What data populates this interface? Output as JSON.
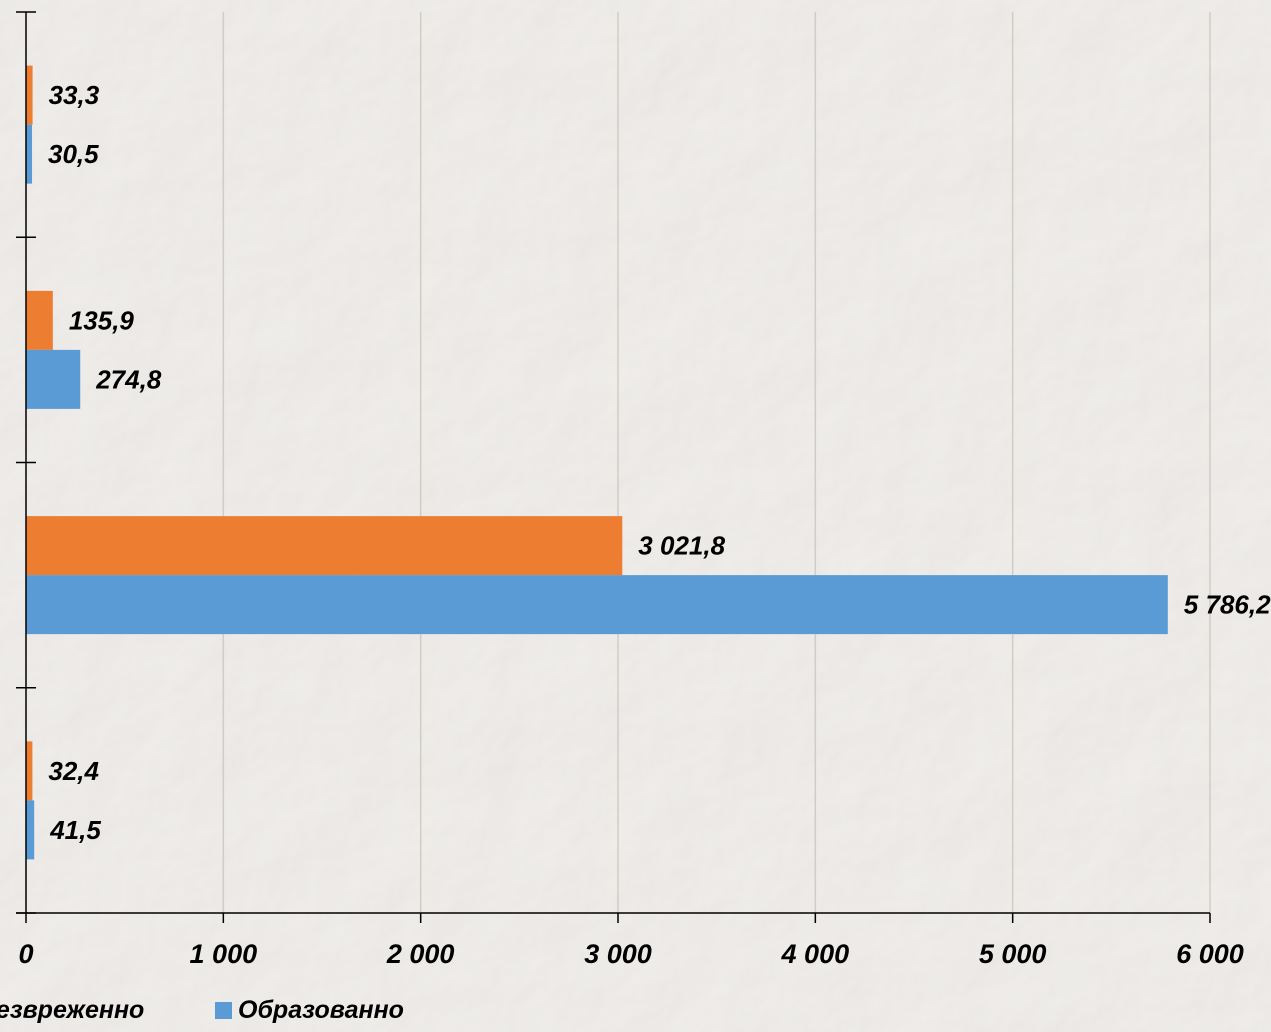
{
  "chart_data": {
    "type": "bar",
    "orientation": "horizontal",
    "categories": [
      "",
      "",
      "",
      ""
    ],
    "series": [
      {
        "name": "Обезвреженно",
        "color": "#ed7d31",
        "values": [
          32.4,
          3021.8,
          135.9,
          33.3
        ]
      },
      {
        "name": "Образованно",
        "color": "#5b9bd5",
        "values": [
          41.5,
          5786.2,
          274.8,
          30.5
        ]
      }
    ],
    "data_labels": {
      "Обезвреженно": [
        "32,4",
        "3 021,8",
        "135,9",
        "33,3"
      ],
      "Образованно": [
        "41,5",
        "5 786,2",
        "274,8",
        "30,5"
      ]
    },
    "x_ticks": [
      "0",
      "1 000",
      "2 000",
      "3 000",
      "4 000",
      "5 000",
      "6 000"
    ],
    "xlim": [
      0,
      6000
    ],
    "title": "",
    "xlabel": "",
    "ylabel": "",
    "grid": "vertical",
    "legend": "bottom",
    "colors": {
      "background": "#efebe6",
      "gridline": "#d0ccc6",
      "axis": "#000000"
    }
  }
}
